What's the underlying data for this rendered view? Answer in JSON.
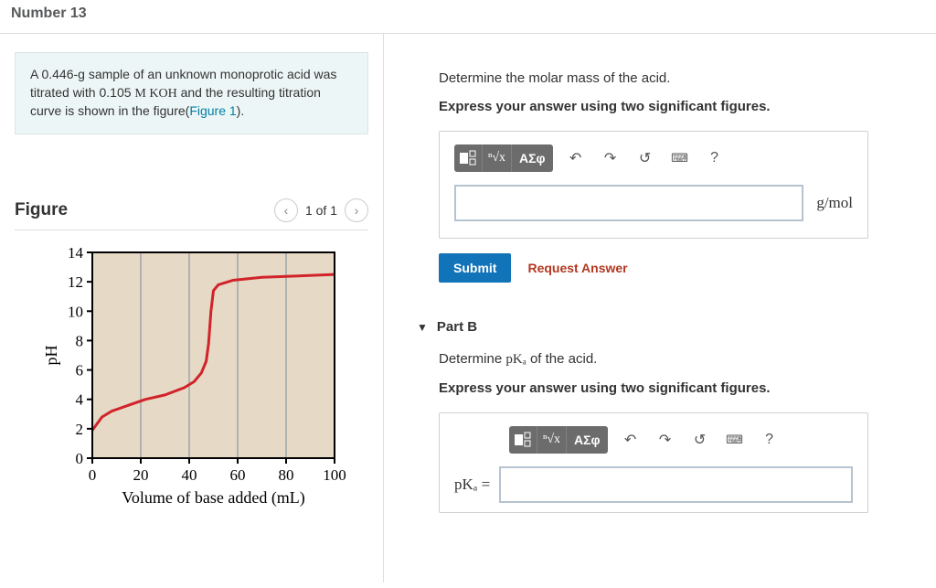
{
  "header": {
    "title": "Number 13"
  },
  "problem": {
    "text_pre": "A 0.446-g sample of an unknown monoprotic acid was titrated with 0.105 ",
    "formula": "M KOH",
    "text_mid": " and the resulting titration curve is shown in the figure(",
    "link": "Figure 1",
    "text_post": ")."
  },
  "figure": {
    "title": "Figure",
    "nav": "1 of 1",
    "chart": {
      "type": "line",
      "xlabel": "Volume of base added (mL)",
      "ylabel": "pH",
      "xlim": [
        0,
        100
      ],
      "ylim": [
        0,
        14
      ],
      "xticks": [
        0,
        20,
        40,
        60,
        80,
        100
      ],
      "yticks": [
        0,
        2,
        4,
        6,
        8,
        10,
        12,
        14
      ],
      "bg_color": "#e6d9c6",
      "grid_color": "#7a8d9a",
      "line_color": "#d1232a",
      "line_width": 3,
      "axis_color": "#000000",
      "tick_fontsize": 17,
      "label_fontsize": 18,
      "points": [
        [
          0,
          1.9
        ],
        [
          4,
          2.8
        ],
        [
          8,
          3.2
        ],
        [
          15,
          3.6
        ],
        [
          22,
          4.0
        ],
        [
          30,
          4.3
        ],
        [
          38,
          4.8
        ],
        [
          42,
          5.2
        ],
        [
          45,
          5.8
        ],
        [
          47,
          6.6
        ],
        [
          48,
          7.8
        ],
        [
          49,
          10.0
        ],
        [
          50,
          11.4
        ],
        [
          52,
          11.8
        ],
        [
          58,
          12.1
        ],
        [
          70,
          12.3
        ],
        [
          85,
          12.4
        ],
        [
          100,
          12.5
        ]
      ]
    }
  },
  "partA": {
    "prompt": "Determine the molar mass of the acid.",
    "instruction": "Express your answer using two significant figures.",
    "unit": "g/mol",
    "toolbar": {
      "templates": "■",
      "sqrt": "√",
      "greek": "ΑΣφ",
      "undo": "↶",
      "redo": "↷",
      "reset": "↺",
      "keyboard": "⌨",
      "help": "?"
    },
    "submit": "Submit",
    "request": "Request Answer"
  },
  "partB": {
    "title": "Part B",
    "prompt_pre": "Determine ",
    "prompt_var": "pKₐ",
    "prompt_post": " of the acid.",
    "instruction": "Express your answer using two significant figures.",
    "label": "pKₐ =",
    "toolbar": {
      "templates": "■",
      "sqrt": "√",
      "greek": "ΑΣφ",
      "undo": "↶",
      "redo": "↷",
      "reset": "↺",
      "keyboard": "⌨",
      "help": "?"
    }
  }
}
